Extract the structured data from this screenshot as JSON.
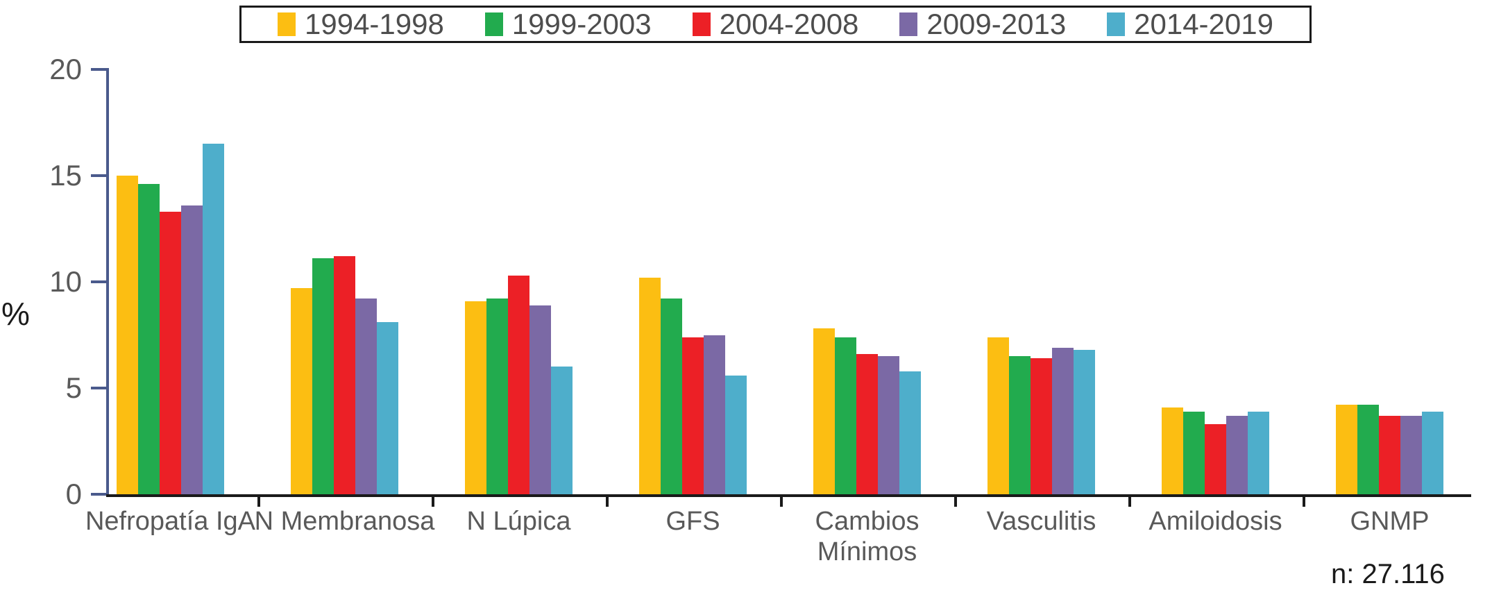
{
  "chart_data": {
    "type": "bar",
    "title": "",
    "ylabel": "%",
    "ylim": [
      0,
      20
    ],
    "yticks": [
      0,
      5,
      10,
      15,
      20
    ],
    "grid": false,
    "legend_position": "top",
    "categories": [
      "Nefropatía IgA",
      "N Membranosa",
      "N Lúpica",
      "GFS",
      "Cambios Mínimos",
      "Vasculitis",
      "Amiloidosis",
      "GNMP"
    ],
    "series": [
      {
        "name": "1994-1998",
        "color": "#FCBE12",
        "values": [
          15.0,
          9.7,
          9.1,
          10.2,
          7.8,
          7.4,
          4.1,
          4.2
        ]
      },
      {
        "name": "1999-2003",
        "color": "#22AB4E",
        "values": [
          14.6,
          11.1,
          9.2,
          9.2,
          7.4,
          6.5,
          3.9,
          4.2
        ]
      },
      {
        "name": "2004-2008",
        "color": "#EC2026",
        "values": [
          13.3,
          11.2,
          10.3,
          7.4,
          6.6,
          6.4,
          3.3,
          3.7
        ]
      },
      {
        "name": "2009-2013",
        "color": "#7B69A5",
        "values": [
          13.6,
          9.2,
          8.9,
          7.5,
          6.5,
          6.9,
          3.7,
          3.7
        ]
      },
      {
        "name": "2014-2019",
        "color": "#4EAECB",
        "values": [
          16.5,
          8.1,
          6.0,
          5.6,
          5.8,
          6.8,
          3.9,
          3.9
        ]
      }
    ],
    "annotation": "n: 27.116"
  },
  "colors": {
    "axis": "#4A5A8C",
    "baseline": "#1A1A1A",
    "tick_label": "#595959",
    "legend_text": "#4D4D4D",
    "annotation_text": "#1A1A1A",
    "background": "#FFFFFF"
  }
}
